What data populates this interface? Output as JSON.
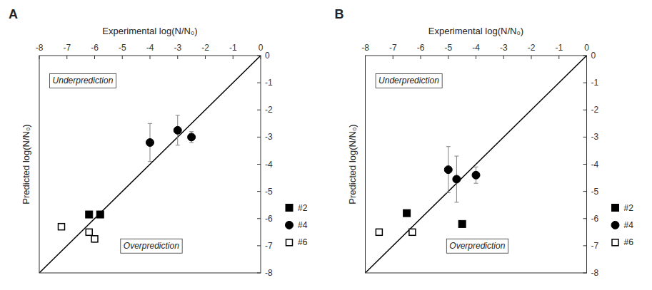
{
  "chart_data": [
    {
      "type": "scatter",
      "title": "A",
      "xlabel": "Experimental log(N/N₀)",
      "ylabel": "Predicted log(N/N₀)",
      "xlim": [
        -8,
        0
      ],
      "ylim": [
        -8,
        0
      ],
      "xticks": [
        -8,
        -7,
        -6,
        -5,
        -4,
        -3,
        -2,
        -1,
        0
      ],
      "yticks": [
        0,
        -1,
        -2,
        -3,
        -4,
        -5,
        -6,
        -7,
        -8
      ],
      "grid": false,
      "legend": "right",
      "annotations": [
        "Underprediction",
        "Overprediction"
      ],
      "series": [
        {
          "name": "#2",
          "color": "#000000",
          "marker": "square",
          "x": [
            -6.2,
            -5.8
          ],
          "values": [
            -5.85,
            -5.85
          ]
        },
        {
          "name": "#4",
          "color": "#000000",
          "marker": "circle",
          "x": [
            -4.0,
            -3.0,
            -2.5
          ],
          "values": [
            -3.2,
            -2.75,
            -3.0
          ],
          "error": [
            0.7,
            0.55,
            0.2
          ]
        },
        {
          "name": "#6",
          "color": "#000000",
          "marker": "square-open",
          "x": [
            -7.2,
            -6.2,
            -6.0
          ],
          "values": [
            -6.3,
            -6.5,
            -6.75
          ],
          "error": [
            0.1,
            0.0,
            0.12
          ]
        }
      ]
    },
    {
      "type": "scatter",
      "title": "B",
      "xlabel": "Experimental log(N/N₀)",
      "ylabel": "Predicted log(N/N₀)",
      "xlim": [
        -8,
        0
      ],
      "ylim": [
        -8,
        0
      ],
      "xticks": [
        -8,
        -7,
        -6,
        -5,
        -4,
        -3,
        -2,
        -1,
        0
      ],
      "yticks": [
        0,
        -1,
        -2,
        -3,
        -4,
        -5,
        -6,
        -7,
        -8
      ],
      "grid": false,
      "legend": "right",
      "annotations": [
        "Underprediction",
        "Overprediction"
      ],
      "series": [
        {
          "name": "#2",
          "color": "#000000",
          "marker": "square",
          "x": [
            -6.5,
            -4.5
          ],
          "values": [
            -5.8,
            -6.2
          ]
        },
        {
          "name": "#4",
          "color": "#000000",
          "marker": "circle",
          "x": [
            -5.0,
            -4.7,
            -4.0
          ],
          "values": [
            -4.2,
            -4.55,
            -4.4
          ],
          "error": [
            0.85,
            0.85,
            0.3
          ]
        },
        {
          "name": "#6",
          "color": "#000000",
          "marker": "square-open",
          "x": [
            -7.5,
            -6.3
          ],
          "values": [
            -6.5,
            -6.5
          ]
        }
      ]
    }
  ]
}
